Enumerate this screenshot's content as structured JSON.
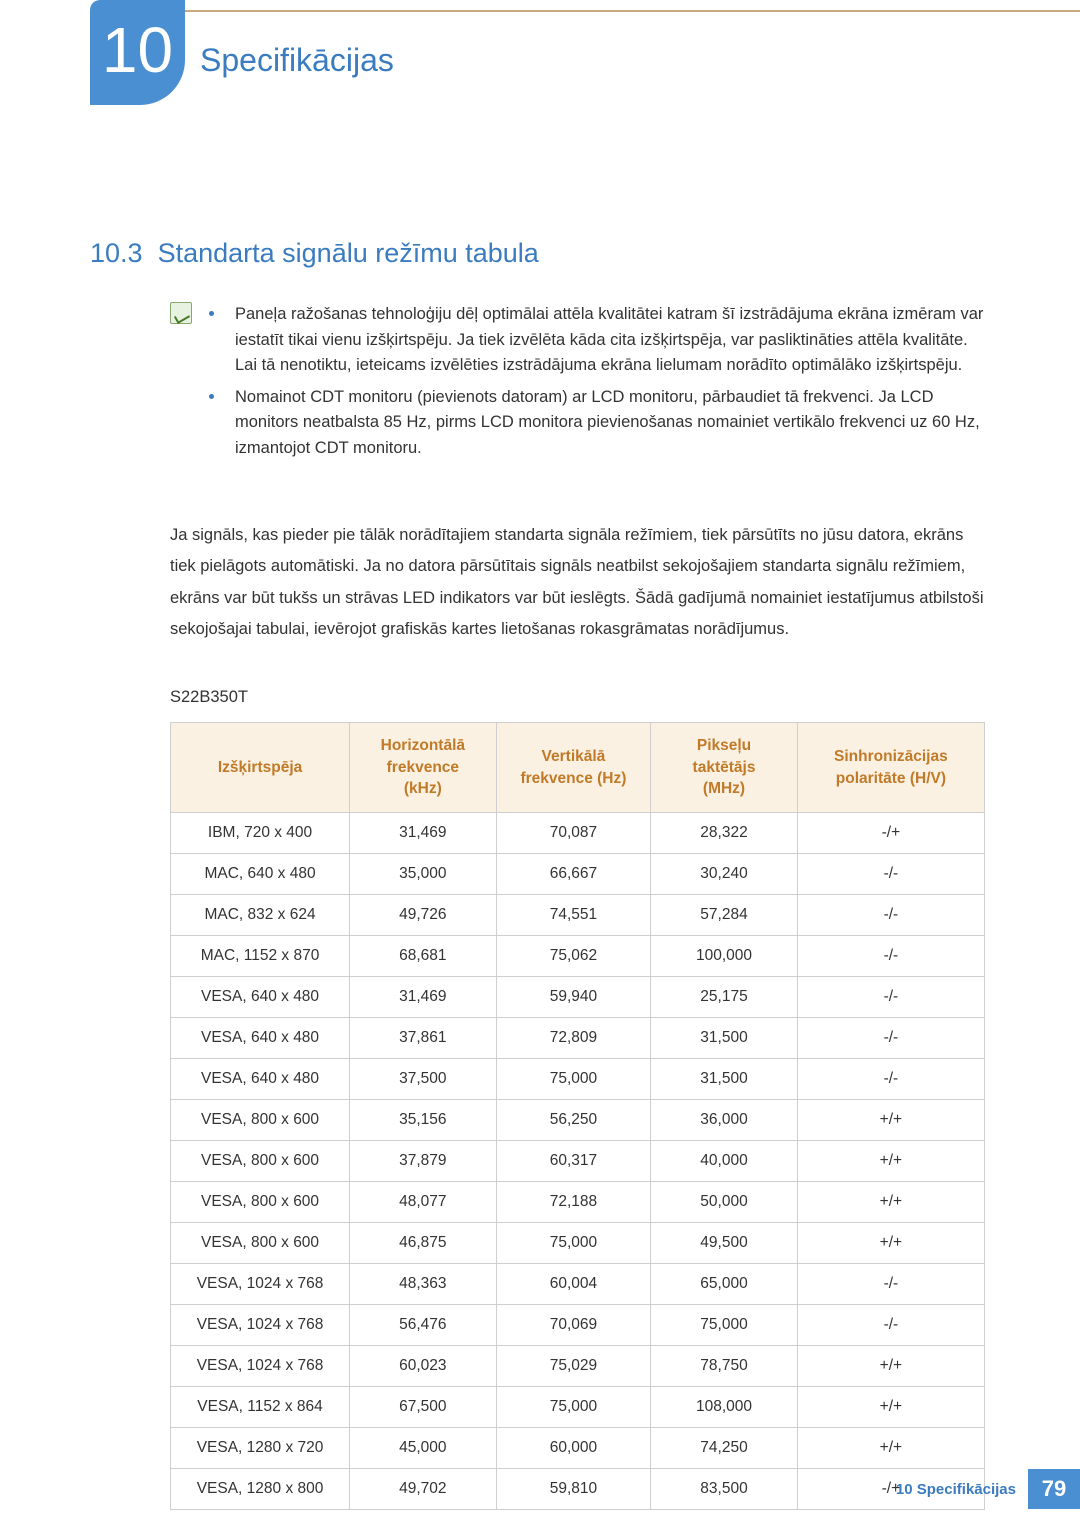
{
  "colors": {
    "accent_blue": "#3a7cbf",
    "badge_blue": "#4a8fd1",
    "top_rule": "#c9a87a",
    "table_header_bg": "#fbf1e3",
    "table_header_text": "#c07a28",
    "table_border": "#cfcfcf",
    "body_text": "#333333",
    "note_icon_bg": "#e8f2e0",
    "note_icon_border": "#8aa86e",
    "bullet": "#3a7cbf"
  },
  "chapter": {
    "number": "10",
    "title": "Specifikācijas"
  },
  "section": {
    "number": "10.3",
    "title": "Standarta signālu režīmu tabula"
  },
  "notes": [
    "Paneļa ražošanas tehnoloģiju dēļ optimālai attēla kvalitātei katram šī izstrādājuma ekrāna izmēram var iestatīt tikai vienu izšķirtspēju. Ja tiek izvēlēta kāda cita izšķirtspēja, var pasliktināties attēla kvalitāte. Lai tā nenotiktu, ieteicams izvēlēties izstrādājuma ekrāna lielumam norādīto optimālāko izšķirtspēju.",
    "Nomainot CDT monitoru (pievienots datoram) ar LCD monitoru, pārbaudiet tā frekvenci. Ja LCD monitors neatbalsta 85 Hz, pirms LCD monitora pievienošanas nomainiet vertikālo frekvenci uz 60 Hz, izmantojot CDT monitoru."
  ],
  "body_paragraph": "Ja signāls, kas pieder pie tālāk norādītajiem standarta signāla režīmiem, tiek pārsūtīts no jūsu datora, ekrāns tiek pielāgots automātiski. Ja no datora pārsūtītais signāls neatbilst sekojošajiem standarta signālu režīmiem, ekrāns var būt tukšs un strāvas LED indikators var būt ieslēgts. Šādā gadījumā nomainiet iestatījumus atbilstoši sekojošajai tabulai, ievērojot grafiskās kartes lietošanas rokasgrāmatas norādījumus.",
  "model": "S22B350T",
  "table": {
    "columns": [
      "Izšķirtspēja",
      "Horizontālā frekvence (kHz)",
      "Vertikālā frekvence (Hz)",
      "Pikseļu taktētājs (MHz)",
      "Sinhronizācijas polaritāte (H/V)"
    ],
    "rows": [
      [
        "IBM, 720 x 400",
        "31,469",
        "70,087",
        "28,322",
        "-/+"
      ],
      [
        "MAC, 640 x 480",
        "35,000",
        "66,667",
        "30,240",
        "-/-"
      ],
      [
        "MAC, 832 x 624",
        "49,726",
        "74,551",
        "57,284",
        "-/-"
      ],
      [
        "MAC, 1152 x 870",
        "68,681",
        "75,062",
        "100,000",
        "-/-"
      ],
      [
        "VESA, 640 x 480",
        "31,469",
        "59,940",
        "25,175",
        "-/-"
      ],
      [
        "VESA, 640 x 480",
        "37,861",
        "72,809",
        "31,500",
        "-/-"
      ],
      [
        "VESA, 640 x 480",
        "37,500",
        "75,000",
        "31,500",
        "-/-"
      ],
      [
        "VESA, 800 x 600",
        "35,156",
        "56,250",
        "36,000",
        "+/+"
      ],
      [
        "VESA, 800 x 600",
        "37,879",
        "60,317",
        "40,000",
        "+/+"
      ],
      [
        "VESA, 800 x 600",
        "48,077",
        "72,188",
        "50,000",
        "+/+"
      ],
      [
        "VESA, 800 x 600",
        "46,875",
        "75,000",
        "49,500",
        "+/+"
      ],
      [
        "VESA, 1024 x 768",
        "48,363",
        "60,004",
        "65,000",
        "-/-"
      ],
      [
        "VESA, 1024 x 768",
        "56,476",
        "70,069",
        "75,000",
        "-/-"
      ],
      [
        "VESA, 1024 x 768",
        "60,023",
        "75,029",
        "78,750",
        "+/+"
      ],
      [
        "VESA, 1152 x 864",
        "67,500",
        "75,000",
        "108,000",
        "+/+"
      ],
      [
        "VESA, 1280 x 720",
        "45,000",
        "60,000",
        "74,250",
        "+/+"
      ],
      [
        "VESA, 1280 x 800",
        "49,702",
        "59,810",
        "83,500",
        "-/+"
      ]
    ]
  },
  "footer": {
    "text": "10 Specifikācijas",
    "page": "79"
  }
}
